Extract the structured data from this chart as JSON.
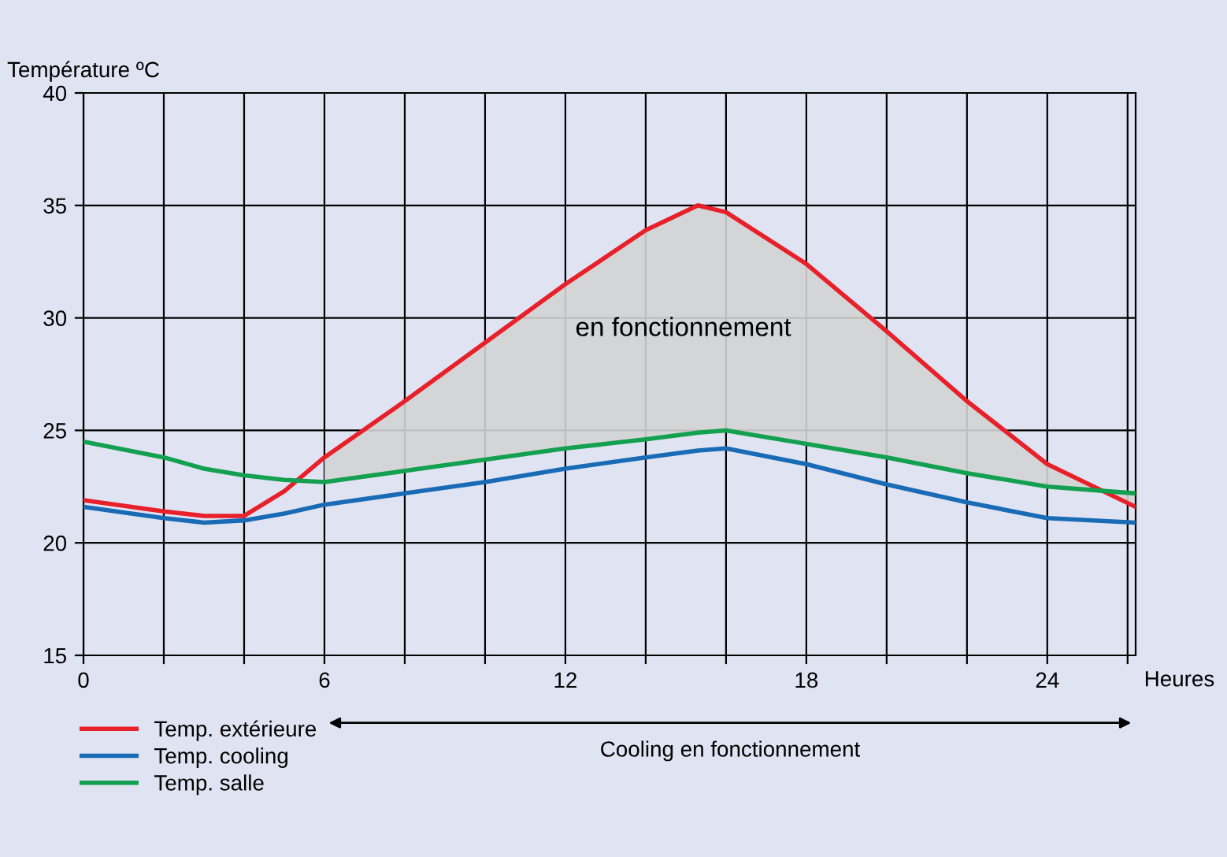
{
  "chart_data": {
    "type": "line",
    "x": [
      0,
      2,
      3,
      4,
      5,
      6,
      8,
      10,
      12,
      14,
      15.3,
      16,
      18,
      20,
      22,
      24,
      26.2
    ],
    "series": [
      {
        "name": "Temp. extérieure",
        "color": "#e8202a",
        "values": [
          21.9,
          21.4,
          21.2,
          21.2,
          22.3,
          23.8,
          26.3,
          28.9,
          31.5,
          33.9,
          35.0,
          34.7,
          32.4,
          29.4,
          26.3,
          23.5,
          21.6
        ],
        "lower": [
          null,
          null,
          null,
          null,
          null,
          22.7,
          23.2,
          23.7,
          24.2,
          24.6,
          24.9,
          25.0,
          24.4,
          23.8,
          23.1,
          22.5,
          22.2
        ],
        "upper": [
          null,
          null,
          null,
          null,
          null,
          23.8,
          26.3,
          28.9,
          31.5,
          33.9,
          35.0,
          34.7,
          32.4,
          29.4,
          26.3,
          23.5,
          21.6
        ]
      },
      {
        "name": "Temp. cooling",
        "color": "#1a6bb5",
        "values": [
          21.6,
          21.1,
          20.9,
          21.0,
          21.3,
          21.7,
          22.2,
          22.7,
          23.3,
          23.8,
          24.1,
          24.2,
          23.5,
          22.6,
          21.8,
          21.1,
          20.9
        ]
      },
      {
        "name": "Temp. salle",
        "color": "#13a050",
        "values": [
          24.5,
          23.8,
          23.3,
          23.0,
          22.8,
          22.7,
          23.2,
          23.7,
          24.2,
          24.6,
          24.9,
          25.0,
          24.4,
          23.8,
          23.1,
          22.5,
          22.2
        ]
      }
    ],
    "xlabel": "Heures",
    "ylabel": "Température ºC",
    "xlim": [
      0,
      26.2
    ],
    "ylim": [
      15,
      40
    ],
    "xticks": [
      0,
      {
        "value": 2,
        "label": null
      },
      {
        "value": 4,
        "label": null
      },
      6,
      {
        "value": 8,
        "label": null
      },
      {
        "value": 10,
        "label": null
      },
      12,
      {
        "value": 14,
        "label": null
      },
      {
        "value": 16,
        "label": null
      },
      18,
      {
        "value": 20,
        "label": null
      },
      {
        "value": 22,
        "label": null
      },
      24,
      {
        "value": 26,
        "label": null
      }
    ],
    "yticks": [
      15,
      20,
      25,
      30,
      35,
      40
    ],
    "grid": true,
    "legend": "bottom left",
    "annotations": [
      "en fonctionnement",
      "Cooling en fonctionnement"
    ]
  }
}
